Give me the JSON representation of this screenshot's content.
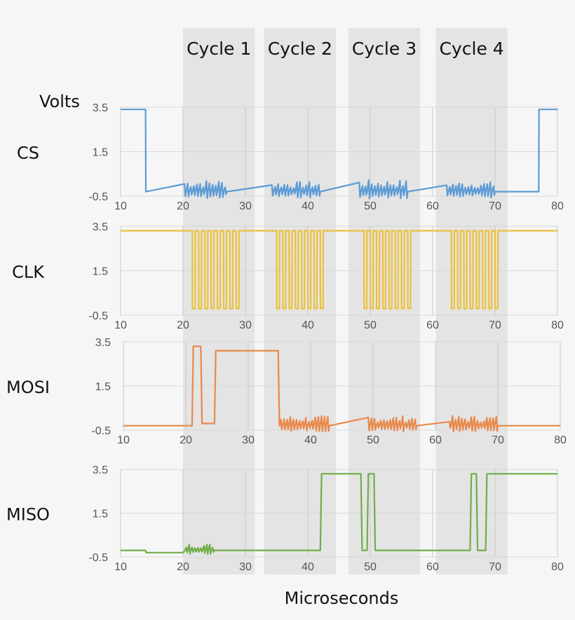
{
  "chart_data": {
    "type": "line",
    "xlabel": "Microseconds",
    "ylabel": "Volts",
    "xlim": [
      10,
      80
    ],
    "ylim": [
      -0.5,
      3.5
    ],
    "x_ticks": [
      "10",
      "20",
      "30",
      "40",
      "50",
      "60",
      "70",
      "80"
    ],
    "y_ticks": [
      "3.5",
      "1.5",
      "-0.5"
    ],
    "grid": true,
    "cycles": [
      {
        "label": "Cycle 1",
        "start": 20,
        "end": 31.5
      },
      {
        "label": "Cycle 2",
        "start": 33,
        "end": 44.5
      },
      {
        "label": "Cycle 3",
        "start": 46.5,
        "end": 58
      },
      {
        "label": "Cycle 4",
        "start": 60.5,
        "end": 72
      }
    ],
    "series": [
      {
        "name": "CS",
        "color": "#5b9bd5",
        "points": [
          [
            10,
            3.4
          ],
          [
            14,
            3.4
          ],
          [
            14.05,
            -0.3
          ],
          [
            77,
            -0.3
          ],
          [
            77.05,
            3.4
          ],
          [
            80,
            3.4
          ]
        ],
        "noise": [
          {
            "from": 20,
            "to": 27,
            "amp": 0.35,
            "count": 14
          },
          {
            "from": 34,
            "to": 42,
            "amp": 0.3,
            "count": 16
          },
          {
            "from": 48,
            "to": 56,
            "amp": 0.35,
            "count": 16
          },
          {
            "from": 62,
            "to": 70,
            "amp": 0.3,
            "count": 16
          }
        ]
      },
      {
        "name": "CLK",
        "color": "#ecc13a",
        "base": 3.3,
        "bursts": [
          {
            "from": 21.5,
            "to": 29.5,
            "pulses": 8
          },
          {
            "from": 35,
            "to": 43,
            "pulses": 8
          },
          {
            "from": 49,
            "to": 57,
            "pulses": 8
          },
          {
            "from": 63,
            "to": 71,
            "pulses": 8
          }
        ],
        "low": -0.2
      },
      {
        "name": "MOSI",
        "color": "#e8894a",
        "points": [
          [
            10,
            -0.3
          ],
          [
            21,
            -0.3
          ],
          [
            21.2,
            3.3
          ],
          [
            22.4,
            3.3
          ],
          [
            22.6,
            -0.2
          ],
          [
            24.6,
            -0.2
          ],
          [
            24.8,
            3.1
          ],
          [
            34.8,
            3.1
          ],
          [
            35,
            -0.3
          ],
          [
            80,
            -0.3
          ]
        ],
        "noise": [
          {
            "from": 35,
            "to": 43,
            "amp": 0.3,
            "count": 16
          },
          {
            "from": 49,
            "to": 57,
            "amp": 0.3,
            "count": 16
          },
          {
            "from": 62,
            "to": 70,
            "amp": 0.3,
            "count": 16
          }
        ]
      },
      {
        "name": "MISO",
        "color": "#70ad47",
        "points": [
          [
            10,
            -0.2
          ],
          [
            14,
            -0.2
          ],
          [
            14.1,
            -0.3
          ],
          [
            20,
            -0.3
          ],
          [
            20.3,
            -0.2
          ],
          [
            42,
            -0.2
          ],
          [
            42.2,
            3.3
          ],
          [
            48.5,
            3.3
          ],
          [
            48.7,
            -0.2
          ],
          [
            49.5,
            -0.2
          ],
          [
            49.7,
            3.3
          ],
          [
            50.6,
            3.3
          ],
          [
            50.8,
            -0.2
          ],
          [
            66,
            -0.2
          ],
          [
            66.2,
            3.3
          ],
          [
            67,
            3.3
          ],
          [
            67.2,
            -0.2
          ],
          [
            68.5,
            -0.2
          ],
          [
            68.7,
            3.3
          ],
          [
            80,
            3.3
          ]
        ],
        "noise": [
          {
            "from": 20,
            "to": 25,
            "amp": 0.2,
            "count": 10
          }
        ]
      }
    ]
  }
}
